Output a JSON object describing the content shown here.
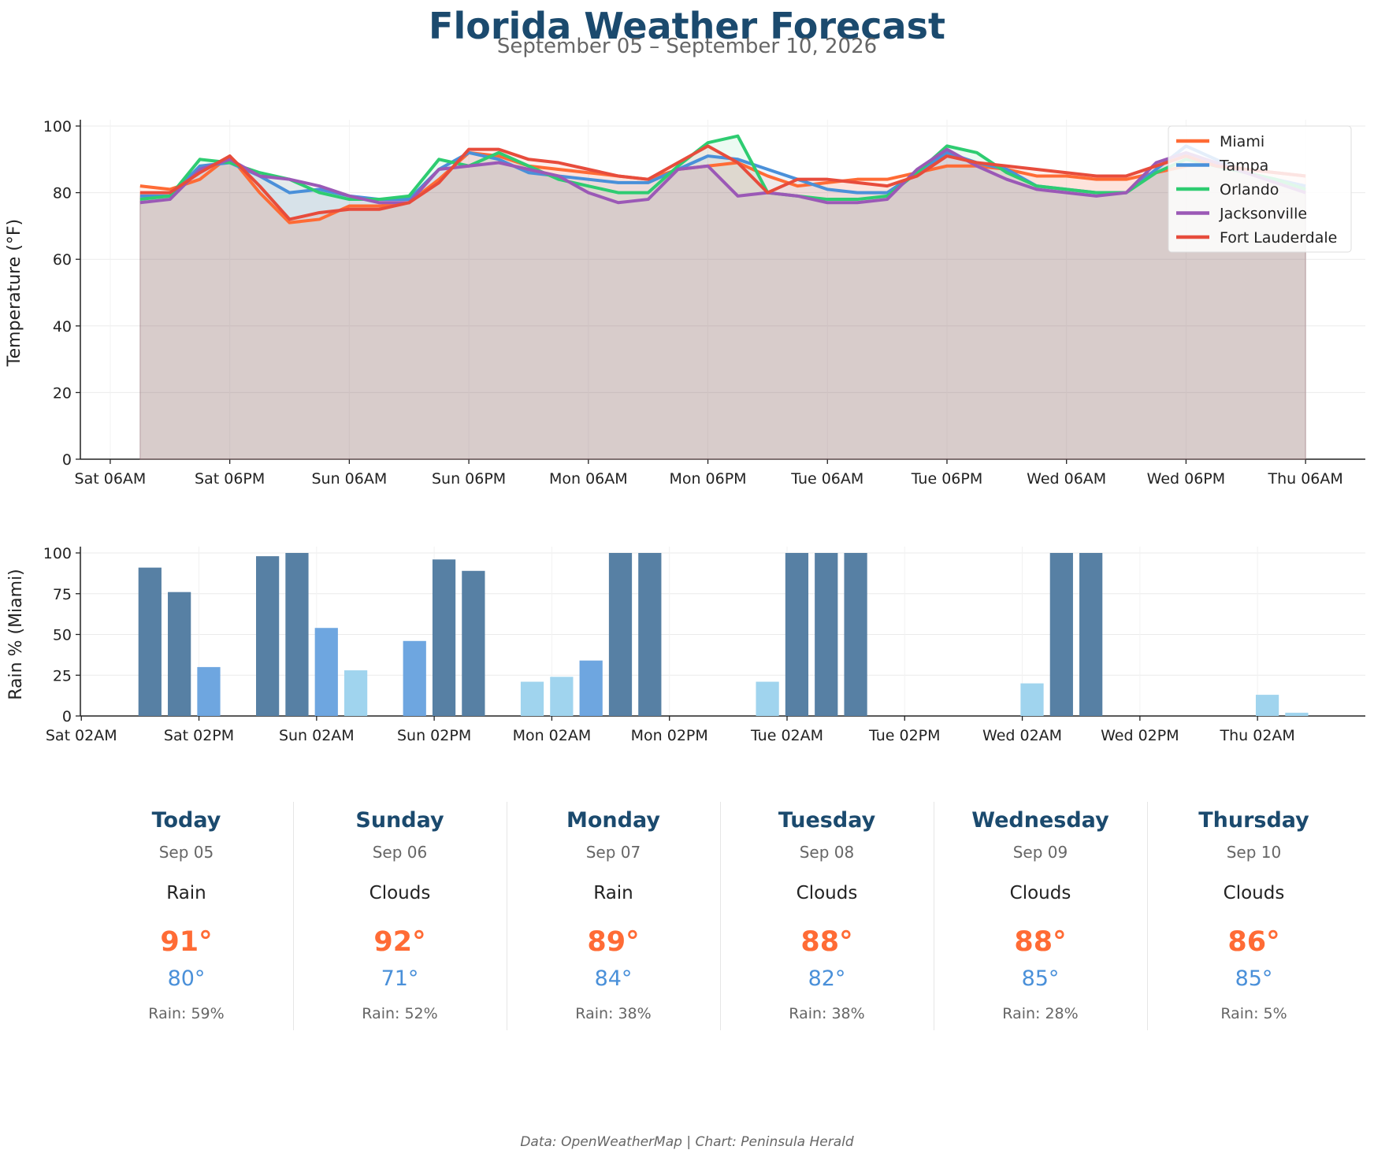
{
  "title": "Florida Weather Forecast",
  "subtitle": "September 05 – September 10, 2026",
  "footer": "Data: OpenWeatherMap | Chart: Peninsula Herald",
  "chart_data": [
    {
      "type": "line",
      "ylabel": "Temperature (°F)",
      "xlabel": "",
      "ylim": [
        0,
        100
      ],
      "yticks": [
        0,
        20,
        40,
        60,
        80,
        100
      ],
      "x_unit": "hours from Sat 06AM",
      "xticks": [
        0,
        12,
        24,
        36,
        48,
        60,
        72,
        84,
        96,
        108,
        120
      ],
      "xtick_labels": [
        "Sat 06AM",
        "Sat 06PM",
        "Sun 06AM",
        "Sun 06PM",
        "Mon 06AM",
        "Mon 06PM",
        "Tue 06AM",
        "Tue 06PM",
        "Wed 06AM",
        "Wed 06PM",
        "Thu 06AM"
      ],
      "xlim": [
        -3,
        126
      ],
      "x": [
        3,
        6,
        9,
        12,
        15,
        18,
        21,
        24,
        27,
        30,
        33,
        36,
        39,
        42,
        45,
        48,
        51,
        54,
        57,
        60,
        63,
        66,
        69,
        72,
        75,
        78,
        81,
        84,
        87,
        90,
        93,
        96,
        99,
        102,
        105,
        108,
        111,
        114,
        117,
        120
      ],
      "grid": true,
      "legend": "top-right",
      "fill_to_zero": true,
      "series": [
        {
          "name": "Miami",
          "color": "#ff6b35",
          "values": [
            82,
            81,
            84,
            91,
            80,
            71,
            72,
            76,
            76,
            77,
            84,
            92,
            91,
            88,
            87,
            86,
            85,
            84,
            87,
            88,
            89,
            85,
            82,
            83,
            84,
            84,
            86,
            88,
            88,
            87,
            85,
            85,
            84,
            84,
            86,
            88,
            89,
            87,
            86,
            85
          ]
        },
        {
          "name": "Tampa",
          "color": "#4a90d9",
          "values": [
            79,
            79,
            88,
            89,
            85,
            80,
            81,
            79,
            78,
            78,
            87,
            92,
            90,
            86,
            85,
            84,
            83,
            83,
            87,
            91,
            90,
            87,
            84,
            81,
            80,
            80,
            86,
            92,
            89,
            87,
            82,
            81,
            80,
            80,
            87,
            94,
            90,
            86,
            84,
            82
          ]
        },
        {
          "name": "Orlando",
          "color": "#2ecc71",
          "values": [
            78,
            79,
            90,
            89,
            86,
            84,
            80,
            78,
            78,
            79,
            90,
            88,
            92,
            88,
            84,
            82,
            80,
            80,
            88,
            95,
            97,
            80,
            79,
            78,
            78,
            79,
            86,
            94,
            92,
            86,
            82,
            81,
            80,
            80,
            86,
            90,
            88,
            86,
            84,
            81
          ]
        },
        {
          "name": "Jacksonville",
          "color": "#9b59b6",
          "values": [
            77,
            78,
            87,
            90,
            85,
            84,
            82,
            79,
            77,
            77,
            87,
            88,
            89,
            87,
            85,
            80,
            77,
            78,
            87,
            88,
            79,
            80,
            79,
            77,
            77,
            78,
            87,
            93,
            88,
            84,
            81,
            80,
            79,
            80,
            89,
            92,
            89,
            86,
            83,
            80
          ]
        },
        {
          "name": "Fort Lauderdale",
          "color": "#e74c3c",
          "values": [
            80,
            80,
            86,
            91,
            82,
            72,
            74,
            75,
            75,
            77,
            83,
            93,
            93,
            90,
            89,
            87,
            85,
            84,
            89,
            94,
            89,
            80,
            84,
            84,
            83,
            82,
            85,
            91,
            89,
            88,
            87,
            86,
            85,
            85,
            88,
            91,
            88,
            87,
            86,
            85
          ]
        }
      ]
    },
    {
      "type": "bar",
      "ylabel": "Rain % (Miami)",
      "xlabel": "",
      "ylim": [
        0,
        100
      ],
      "yticks": [
        0,
        25,
        50,
        75,
        100
      ],
      "x_unit": "hours from Sat 02AM",
      "xticks": [
        0,
        12,
        24,
        36,
        48,
        60,
        72,
        84,
        96,
        108,
        120
      ],
      "xtick_labels": [
        "Sat 02AM",
        "Sat 02PM",
        "Sun 02AM",
        "Sun 02PM",
        "Mon 02AM",
        "Mon 02PM",
        "Tue 02AM",
        "Tue 02PM",
        "Wed 02AM",
        "Wed 02PM",
        "Thu 02AM"
      ],
      "xlim": [
        -0.1,
        131
      ],
      "x": [
        7,
        10,
        13,
        16,
        19,
        22,
        25,
        28,
        31,
        34,
        37,
        40,
        43,
        46,
        49,
        52,
        55,
        58,
        61,
        64,
        67,
        70,
        73,
        76,
        79,
        82,
        85,
        88,
        91,
        94,
        97,
        100,
        103,
        106,
        109,
        112,
        115,
        118,
        121,
        124
      ],
      "values": [
        91,
        76,
        30,
        0,
        98,
        100,
        54,
        28,
        0,
        46,
        96,
        89,
        0,
        21,
        24,
        34,
        100,
        100,
        0,
        0,
        0,
        21,
        100,
        100,
        100,
        0,
        0,
        0,
        0,
        0,
        20,
        100,
        100,
        0,
        0,
        0,
        0,
        0,
        13,
        2
      ],
      "color_rule": {
        "low_below": 30,
        "mid_below": 60
      },
      "colors": {
        "low": "#a0d4ee",
        "mid": "#6ea6e0",
        "high": "#5780a4"
      },
      "grid": true
    }
  ],
  "forecast": [
    {
      "day": "Today",
      "date": "Sep 05",
      "condition": "Rain",
      "high": "91°",
      "low": "80°",
      "rain": "Rain: 59%"
    },
    {
      "day": "Sunday",
      "date": "Sep 06",
      "condition": "Clouds",
      "high": "92°",
      "low": "71°",
      "rain": "Rain: 52%"
    },
    {
      "day": "Monday",
      "date": "Sep 07",
      "condition": "Rain",
      "high": "89°",
      "low": "84°",
      "rain": "Rain: 38%"
    },
    {
      "day": "Tuesday",
      "date": "Sep 08",
      "condition": "Clouds",
      "high": "88°",
      "low": "82°",
      "rain": "Rain: 38%"
    },
    {
      "day": "Wednesday",
      "date": "Sep 09",
      "condition": "Clouds",
      "high": "88°",
      "low": "85°",
      "rain": "Rain: 28%"
    },
    {
      "day": "Thursday",
      "date": "Sep 10",
      "condition": "Clouds",
      "high": "86°",
      "low": "85°",
      "rain": "Rain: 5%"
    }
  ]
}
